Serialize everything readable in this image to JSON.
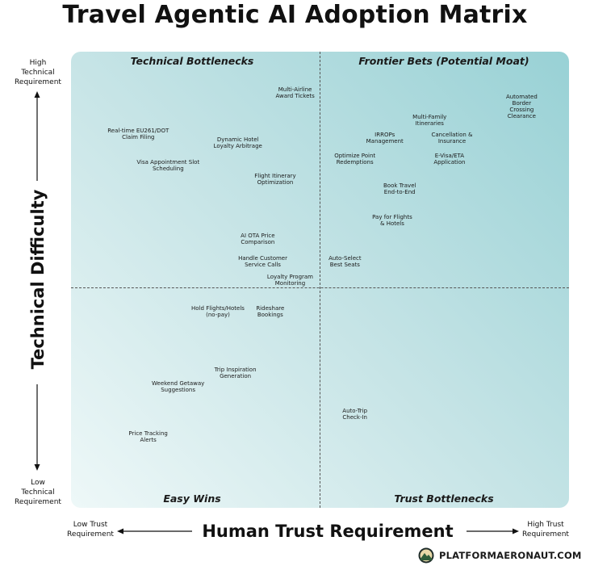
{
  "chart_data": {
    "type": "scatter",
    "title": "Travel Agentic AI Adoption Matrix",
    "xlabel": "Human Trust Requirement",
    "ylabel": "Technical Difficulty",
    "x_low_label": "Low Trust\nRequirement",
    "x_high_label": "High Trust\nRequirement",
    "y_high_label": "High\nTechnical\nRequirement",
    "y_low_label": "Low\nTechnical\nRequirement",
    "xlim": [
      0,
      100
    ],
    "ylim": [
      0,
      100
    ],
    "grid": false,
    "quadrants": {
      "top_left": "Technical Bottlenecks",
      "top_right": "Frontier Bets (Potential Moat)",
      "bottom_left": "Easy Wins",
      "bottom_right": "Trust Bottlenecks"
    },
    "points": [
      {
        "label": "Multi-Airline\nAward Tickets",
        "x": 45,
        "y": 91
      },
      {
        "label": "Real-time EU261/DOT\nClaim Filing",
        "x": 13.5,
        "y": 82
      },
      {
        "label": "Dynamic Hotel\nLoyalty Arbitrage",
        "x": 33.5,
        "y": 80
      },
      {
        "label": "Visa Appointment Slot\nScheduling",
        "x": 19.5,
        "y": 75
      },
      {
        "label": "Flight Itinerary\nOptimization",
        "x": 41,
        "y": 72
      },
      {
        "label": "AI OTA Price\nComparison",
        "x": 37.5,
        "y": 59
      },
      {
        "label": "Handle Customer\nService Calls",
        "x": 38.5,
        "y": 54
      },
      {
        "label": "Loyalty Program\nMonitoring",
        "x": 44,
        "y": 50
      },
      {
        "label": "Auto-Select\nBest Seats",
        "x": 55,
        "y": 54
      },
      {
        "label": "Automated Border\nCrossing Clearance",
        "x": 90.5,
        "y": 88
      },
      {
        "label": "Multi-Family\nItineraries",
        "x": 72,
        "y": 85
      },
      {
        "label": "IRROPs\nManagement",
        "x": 63,
        "y": 81
      },
      {
        "label": "Cancellation &\nInsurance",
        "x": 76.5,
        "y": 81
      },
      {
        "label": "Optimize Point\nRedemptions",
        "x": 57,
        "y": 76.5
      },
      {
        "label": "E-Visa/ETA\nApplication",
        "x": 76,
        "y": 76.5
      },
      {
        "label": "Book Travel\nEnd-to-End",
        "x": 66,
        "y": 70
      },
      {
        "label": "Pay for Flights\n& Hotels",
        "x": 64.5,
        "y": 63
      },
      {
        "label": "Hold Flights/Hotels\n(no-pay)",
        "x": 29.5,
        "y": 43
      },
      {
        "label": "Rideshare\nBookings",
        "x": 40,
        "y": 43
      },
      {
        "label": "Trip Inspiration\nGeneration",
        "x": 33,
        "y": 29.5
      },
      {
        "label": "Weekend Getaway\nSuggestions",
        "x": 21.5,
        "y": 26.5
      },
      {
        "label": "Auto-Trip\nCheck-In",
        "x": 57,
        "y": 20.5
      },
      {
        "label": "Price Tracking\nAlerts",
        "x": 15.5,
        "y": 15.5
      }
    ]
  },
  "brand": {
    "name": "PLATFORMAERONAUT.COM",
    "logo_icon": "mountain-badge-icon"
  }
}
